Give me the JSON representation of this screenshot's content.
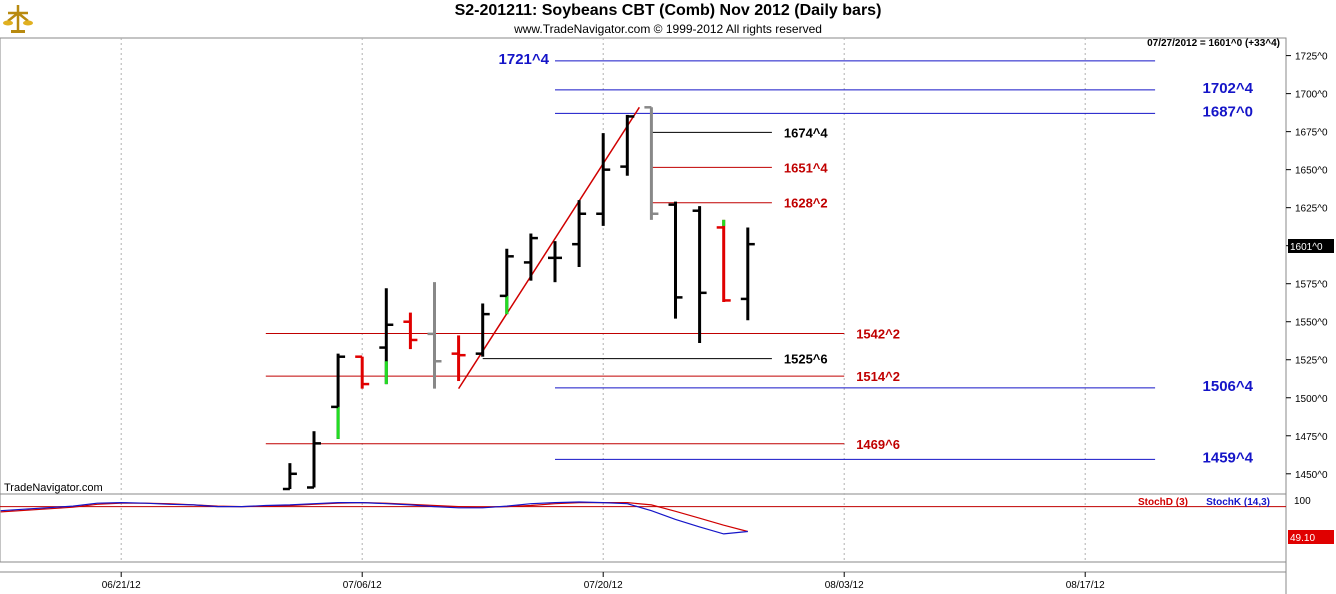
{
  "header": {
    "title": "S2-201211:  Soybeans CBT (Comb) Nov 2012  (Daily bars)",
    "copyright": "www.TradeNavigator.com © 1999-2012 All rights reserved",
    "last_price_note": "07/27/2012 = 1601^0 (+33^4)",
    "watermark": "TradeNavigator.com",
    "logo_icon": "trade-navigator-logo-icon"
  },
  "colors": {
    "up_bar": "#000000",
    "down_bar": "#e00000",
    "outside_bar": "#888888",
    "highlight": "#22dd22",
    "red_level": "#c00000",
    "blue_level": "#1515c8",
    "black_level": "#000000",
    "stoch_d": "#d00000",
    "stoch_k": "#1515c8",
    "price_tag_bg": "#000000",
    "stoch_tag_bg": "#e00000"
  },
  "chart_data": [
    {
      "type": "ohlc",
      "ylim": [
        1440,
        1730
      ],
      "y_ticks": [
        "1450^0",
        "1475^0",
        "1500^0",
        "1525^0",
        "1550^0",
        "1575^0",
        "1600^0",
        "1625^0",
        "1650^0",
        "1675^0",
        "1700^0",
        "1725^0"
      ],
      "y_tick_values": [
        1450,
        1475,
        1500,
        1525,
        1550,
        1575,
        1600,
        1625,
        1650,
        1675,
        1700,
        1725
      ],
      "x_ticks": [
        "06/21/12",
        "07/06/12",
        "07/20/12",
        "08/03/12",
        "08/17/12"
      ],
      "x_tick_index": [
        2,
        12,
        22,
        32,
        42
      ],
      "current_price_tag": "1601^0",
      "current_price": 1601,
      "bars": [
        {
          "i": 9,
          "o": 1440,
          "h": 1457,
          "l": 1440,
          "c": 1450,
          "color": "black"
        },
        {
          "i": 10,
          "o": 1441,
          "h": 1478,
          "l": 1441,
          "c": 1470,
          "color": "black"
        },
        {
          "i": 11,
          "o": 1494,
          "h": 1529,
          "l": 1473,
          "c": 1527,
          "color": "black",
          "green_low": 1494
        },
        {
          "i": 12,
          "o": 1527,
          "h": 1527,
          "l": 1506,
          "c": 1509,
          "color": "red"
        },
        {
          "i": 13,
          "o": 1533,
          "h": 1572,
          "l": 1509,
          "c": 1548,
          "color": "black",
          "green_low": 1524
        },
        {
          "i": 14,
          "o": 1550,
          "h": 1556,
          "l": 1532,
          "c": 1538,
          "color": "red"
        },
        {
          "i": 15,
          "o": 1542,
          "h": 1576,
          "l": 1506,
          "c": 1524,
          "color": "gray"
        },
        {
          "i": 16,
          "o": 1529,
          "h": 1541,
          "l": 1511,
          "c": 1528,
          "color": "red"
        },
        {
          "i": 17,
          "o": 1529,
          "h": 1562,
          "l": 1527,
          "c": 1555,
          "color": "black"
        },
        {
          "i": 18,
          "o": 1567,
          "h": 1598,
          "l": 1555,
          "c": 1593,
          "color": "black",
          "green_low": 1567
        },
        {
          "i": 19,
          "o": 1589,
          "h": 1608,
          "l": 1577,
          "c": 1605,
          "color": "black"
        },
        {
          "i": 20,
          "o": 1592,
          "h": 1603,
          "l": 1576,
          "c": 1592,
          "color": "black"
        },
        {
          "i": 21,
          "o": 1601,
          "h": 1630,
          "l": 1586,
          "c": 1621,
          "color": "black"
        },
        {
          "i": 22,
          "o": 1621,
          "h": 1674,
          "l": 1613,
          "c": 1650,
          "color": "black"
        },
        {
          "i": 23,
          "o": 1652,
          "h": 1686,
          "l": 1646,
          "c": 1685,
          "color": "black"
        },
        {
          "i": 24,
          "o": 1691,
          "h": 1691,
          "l": 1617,
          "c": 1621,
          "color": "gray"
        },
        {
          "i": 25,
          "o": 1627,
          "h": 1629,
          "l": 1552,
          "c": 1566,
          "color": "black"
        },
        {
          "i": 26,
          "o": 1623,
          "h": 1626,
          "l": 1536,
          "c": 1569,
          "color": "black"
        },
        {
          "i": 27,
          "o": 1612,
          "h": 1617,
          "l": 1563,
          "c": 1564,
          "color": "red",
          "green_high": 1613
        },
        {
          "i": 28,
          "o": 1565,
          "h": 1612,
          "l": 1551,
          "c": 1601,
          "color": "black"
        }
      ],
      "levels": [
        {
          "label": "1721^4",
          "value": 1721.5,
          "color": "blue",
          "x_from": 20,
          "x_to": 44.9,
          "label_side": "left"
        },
        {
          "label": "1702^4",
          "value": 1702.5,
          "color": "blue",
          "x_from": 20,
          "x_to": 44.9,
          "label_side": "right"
        },
        {
          "label": "1687^0",
          "value": 1687,
          "color": "blue",
          "x_from": 20,
          "x_to": 44.9,
          "label_side": "right"
        },
        {
          "label": "1674^4",
          "value": 1674.5,
          "color": "black",
          "x_from": 24,
          "x_to": 29,
          "label_side": "right"
        },
        {
          "label": "1651^4",
          "value": 1651.5,
          "color": "red",
          "x_from": 24,
          "x_to": 29,
          "label_side": "right"
        },
        {
          "label": "1628^2",
          "value": 1628.25,
          "color": "red",
          "x_from": 24,
          "x_to": 29,
          "label_side": "right"
        },
        {
          "label": "1542^2",
          "value": 1542.25,
          "color": "red",
          "x_from": 8,
          "x_to": 32,
          "label_side": "right"
        },
        {
          "label": "1525^6",
          "value": 1525.75,
          "color": "black",
          "x_from": 17,
          "x_to": 29,
          "label_side": "right"
        },
        {
          "label": "1514^2",
          "value": 1514.25,
          "color": "red",
          "x_from": 8,
          "x_to": 32,
          "label_side": "right"
        },
        {
          "label": "1506^4",
          "value": 1506.5,
          "color": "blue",
          "x_from": 20,
          "x_to": 44.9,
          "label_side": "right"
        },
        {
          "label": "1469^6",
          "value": 1469.75,
          "color": "red",
          "x_from": 8,
          "x_to": 32,
          "label_side": "right"
        },
        {
          "label": "1459^4",
          "value": 1459.5,
          "color": "blue",
          "x_from": 20,
          "x_to": 44.9,
          "label_side": "right"
        }
      ],
      "trendline": {
        "from": {
          "i": 16,
          "v": 1506
        },
        "to": {
          "i": 23.5,
          "v": 1691
        }
      }
    },
    {
      "type": "line",
      "ylim": [
        0,
        100
      ],
      "y_ticks": [
        "100"
      ],
      "y_tick_values": [
        100
      ],
      "reference_line": 92,
      "value_tag": "49.10",
      "value_tag_value": 49.1,
      "legend": [
        {
          "name": "StochD (3)",
          "color": "red"
        },
        {
          "name": "StochK (14,3)",
          "color": "blue"
        }
      ],
      "x": [
        -3,
        0,
        1,
        2,
        3,
        4,
        5,
        6,
        7,
        8,
        9,
        10,
        11,
        12,
        13,
        14,
        15,
        16,
        17,
        18,
        19,
        20,
        21,
        22,
        23,
        24,
        25,
        26,
        27,
        28
      ],
      "series": [
        {
          "name": "StochD (3)",
          "color": "red",
          "values": [
            83,
            91,
            96,
            98,
            98,
            97,
            95,
            93,
            92,
            93,
            94,
            96,
            98,
            99,
            98,
            96,
            94,
            92,
            91,
            92,
            94,
            97,
            99,
            99,
            99,
            95,
            84,
            72,
            60,
            49.1
          ]
        },
        {
          "name": "StochK (14,3)",
          "color": "blue",
          "values": [
            85,
            93,
            98,
            99,
            98,
            96,
            95,
            92,
            92,
            94,
            95,
            97,
            99,
            99,
            97,
            95,
            92,
            90,
            90,
            93,
            97,
            99,
            100,
            99,
            97,
            85,
            70,
            57,
            45,
            49.1
          ]
        }
      ]
    }
  ]
}
